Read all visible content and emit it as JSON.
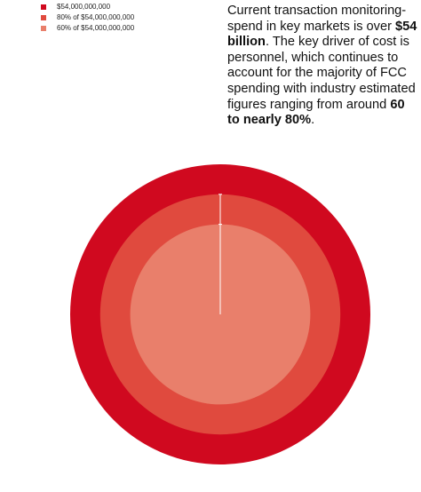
{
  "chart_data": {
    "type": "nested-circles",
    "series": [
      {
        "name": "$54,000,000,000",
        "color": "#d0091f",
        "values": [
          54000000000
        ]
      },
      {
        "name": "80% of $54,000,000,000",
        "color": "#e04a3e",
        "values": [
          43200000000
        ]
      },
      {
        "name": "60% of $54,000,000,000",
        "color": "#e97f6b",
        "values": [
          32400000000
        ]
      }
    ],
    "annotation": [
      {
        "text": "Current transaction monitoring-spend in key markets is over ",
        "bold": false
      },
      {
        "text": "$54 billion",
        "bold": true
      },
      {
        "text": ". The key driver of cost is personnel, which continues to account for the majority of FCC spending with industry estimated figures ranging from around ",
        "bold": false
      },
      {
        "text": "60 to nearly 80%",
        "bold": true
      },
      {
        "text": ".",
        "bold": false
      }
    ]
  }
}
